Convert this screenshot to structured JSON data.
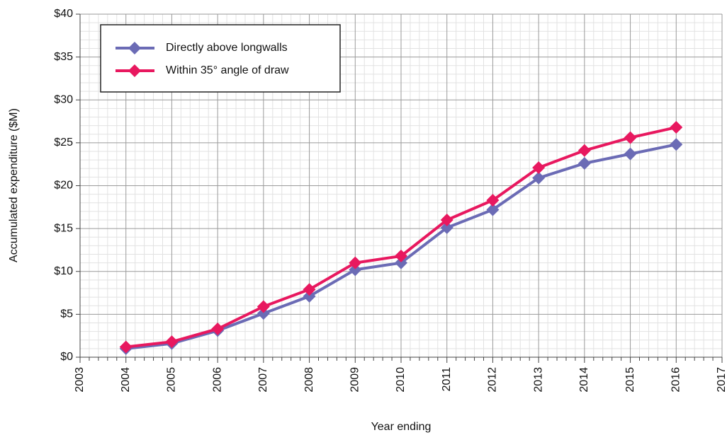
{
  "chart_data": {
    "type": "line",
    "x_label": "Year ending",
    "y_label": "Accumulated expenditure ($M)",
    "x": [
      2004,
      2005,
      2006,
      2007,
      2008,
      2009,
      2010,
      2011,
      2012,
      2013,
      2014,
      2015,
      2016
    ],
    "series": [
      {
        "name": "Directly above longwalls",
        "color": "#6b6bb5",
        "values": [
          1.0,
          1.6,
          3.1,
          5.1,
          7.1,
          10.2,
          11.0,
          15.1,
          17.2,
          20.9,
          22.6,
          23.7,
          24.8
        ]
      },
      {
        "name": "Within 35° angle of draw",
        "color": "#e8185f",
        "values": [
          1.2,
          1.8,
          3.3,
          5.9,
          7.9,
          11.0,
          11.8,
          16.0,
          18.3,
          22.1,
          24.1,
          25.6,
          26.8
        ]
      }
    ],
    "xlim": [
      2003,
      2017
    ],
    "xticks": [
      2003,
      2004,
      2005,
      2006,
      2007,
      2008,
      2009,
      2010,
      2011,
      2012,
      2013,
      2014,
      2015,
      2016,
      2017
    ],
    "ylim": [
      0,
      40
    ],
    "yticks": [
      {
        "value": 0,
        "label": "$0"
      },
      {
        "value": 5,
        "label": "$5"
      },
      {
        "value": 10,
        "label": "$10"
      },
      {
        "value": 15,
        "label": "$15"
      },
      {
        "value": 20,
        "label": "$20"
      },
      {
        "value": 25,
        "label": "$25"
      },
      {
        "value": 30,
        "label": "$30"
      },
      {
        "value": 35,
        "label": "$35"
      },
      {
        "value": 40,
        "label": "$40"
      }
    ],
    "grid": true,
    "legend": "upper left"
  }
}
